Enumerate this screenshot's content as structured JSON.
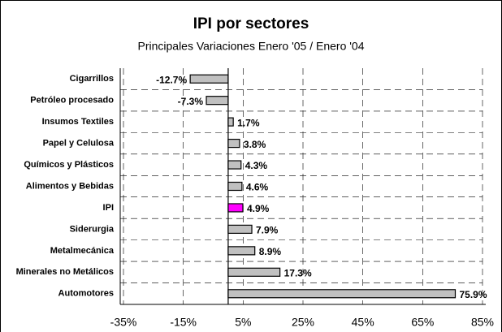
{
  "chart_data": {
    "type": "bar",
    "orientation": "horizontal",
    "title": "IPI por sectores",
    "subtitle": "Principales Variaciones Enero '05 / Enero '04",
    "categories": [
      "Cigarrillos",
      "Petróleo procesado",
      "Insumos Textiles",
      "Papel y Celulosa",
      "Químicos y Plásticos",
      "Alimentos y Bebidas",
      "IPI",
      "Siderurgia",
      "Metalmecánica",
      "Minerales no Metálicos",
      "Automotores"
    ],
    "values": [
      -12.7,
      -7.3,
      1.7,
      3.8,
      4.3,
      4.6,
      4.9,
      7.9,
      8.9,
      17.3,
      75.9
    ],
    "value_labels": [
      "-12.7%",
      "-7.3%",
      "1.7%",
      "3.8%",
      "4.3%",
      "4.6%",
      "4.9%",
      "7.9%",
      "8.9%",
      "17.3%",
      "75.9%"
    ],
    "colors": [
      "#c0c0c0",
      "#c0c0c0",
      "#c0c0c0",
      "#c0c0c0",
      "#c0c0c0",
      "#c0c0c0",
      "#ff00ff",
      "#c0c0c0",
      "#c0c0c0",
      "#c0c0c0",
      "#c0c0c0"
    ],
    "xlim": [
      -35,
      85
    ],
    "xticks": [
      {
        "value": -35,
        "label": "-35%"
      },
      {
        "value": -15,
        "label": "-15%"
      },
      {
        "value": 5,
        "label": "5%"
      },
      {
        "value": 25,
        "label": "25%"
      },
      {
        "value": 45,
        "label": "45%"
      },
      {
        "value": 65,
        "label": "65%"
      },
      {
        "value": 85,
        "label": "85%"
      }
    ],
    "grid": true
  }
}
